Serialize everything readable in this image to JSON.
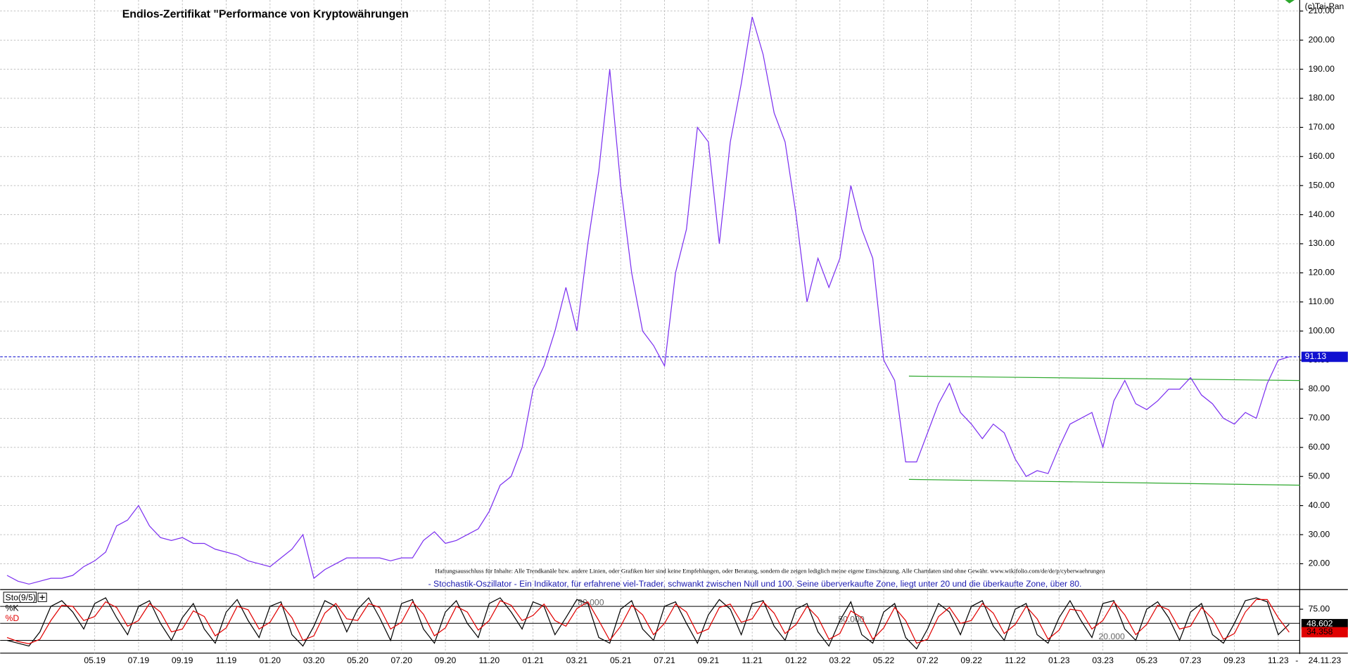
{
  "chart_data": [
    {
      "type": "line",
      "title": "Endlos-Zertifikat \"Performance von Kryptowährungen",
      "copyright": "(c)Tai-Pan",
      "disclaimer": "Haftungsausschluss für Inhalte: Alle Trendkanäle bzw. andere Linien, oder Grafiken hier sind keine Empfehlungen, oder Beratung, sondern die zeigen lediglich meine eigene Einschätzung. Alle Chartdaten sind ohne Gewähr. www.wikifolio.com/de/de/p/cyberwaehrungen",
      "date": "24.11.23",
      "date_separator": "-",
      "categories": [
        null,
        null,
        null,
        null,
        null,
        null,
        null,
        null,
        "05.19",
        null,
        null,
        null,
        "07.19",
        null,
        null,
        null,
        "09.19",
        null,
        null,
        null,
        "11.19",
        null,
        null,
        null,
        "01.20",
        null,
        null,
        null,
        "03.20",
        null,
        null,
        null,
        "05.20",
        null,
        null,
        null,
        "07.20",
        null,
        null,
        null,
        "09.20",
        null,
        null,
        null,
        "11.20",
        null,
        null,
        null,
        "01.21",
        null,
        null,
        null,
        "03.21",
        null,
        null,
        null,
        "05.21",
        null,
        null,
        null,
        "07.21",
        null,
        null,
        null,
        "09.21",
        null,
        null,
        null,
        "11.21",
        null,
        null,
        null,
        "01.22",
        null,
        null,
        null,
        "03.22",
        null,
        null,
        null,
        "05.22",
        null,
        null,
        null,
        "07.22",
        null,
        null,
        null,
        "09.22",
        null,
        null,
        null,
        "11.22",
        null,
        null,
        null,
        "01.23",
        null,
        null,
        null,
        "03.23",
        null,
        null,
        null,
        "05.23",
        null,
        null,
        null,
        "07.23",
        null,
        null,
        null,
        "09.23",
        null,
        null,
        null,
        "11.23",
        null
      ],
      "series": [
        {
          "color": "#7b2ff0",
          "values": [
            16,
            14,
            13,
            14,
            15,
            15,
            16,
            19,
            21,
            24,
            33,
            35,
            40,
            33,
            29,
            28,
            29,
            27,
            27,
            25,
            24,
            23,
            21,
            20,
            19,
            22,
            25,
            30,
            15,
            18,
            20,
            22,
            22,
            22,
            22,
            21,
            22,
            22,
            28,
            31,
            27,
            28,
            30,
            32,
            38,
            47,
            50,
            60,
            80,
            88,
            100,
            115,
            100,
            130,
            155,
            190,
            150,
            120,
            100,
            95,
            88,
            120,
            135,
            170,
            165,
            130,
            165,
            185,
            208,
            195,
            175,
            165,
            140,
            110,
            125,
            115,
            125,
            150,
            135,
            125,
            90,
            83,
            55,
            55,
            65,
            75,
            82,
            72,
            68,
            63,
            68,
            65,
            56,
            50,
            52,
            51,
            60,
            68,
            70,
            72,
            60,
            76,
            83,
            75,
            73,
            76,
            80,
            80,
            84,
            78,
            75,
            70,
            68,
            72,
            70,
            82,
            90,
            91.13
          ]
        }
      ],
      "price_line": 91.13,
      "trendlines": [
        {
          "color": "#2ea82e",
          "x": [
            82.3,
            118
          ],
          "y": [
            84.5,
            83
          ]
        },
        {
          "color": "#2ea82e",
          "x": [
            82.3,
            118
          ],
          "y": [
            49,
            47
          ]
        }
      ],
      "ylim": [
        11.4,
        213.8
      ],
      "yticks": [
        {
          "value": 20,
          "label": "20.00"
        },
        {
          "value": 30,
          "label": "30.00"
        },
        {
          "value": 40,
          "label": "40.00"
        },
        {
          "value": 50,
          "label": "50.00"
        },
        {
          "value": 60,
          "label": "60.00"
        },
        {
          "value": 70,
          "label": "70.00"
        },
        {
          "value": 80,
          "label": "80.00"
        },
        {
          "value": 90,
          "label": "90.00"
        },
        {
          "value": 100,
          "label": "100.00"
        },
        {
          "value": 110,
          "label": "110.00"
        },
        {
          "value": 120,
          "label": "120.00"
        },
        {
          "value": 130,
          "label": "130.00"
        },
        {
          "value": 140,
          "label": "140.00"
        },
        {
          "value": 150,
          "label": "150.00"
        },
        {
          "value": 160,
          "label": "160.00"
        },
        {
          "value": 170,
          "label": "170.00"
        },
        {
          "value": 180,
          "label": "180.00"
        },
        {
          "value": 190,
          "label": "190.00"
        },
        {
          "value": 200,
          "label": "200.00"
        },
        {
          "value": 210,
          "label": "210.00"
        }
      ],
      "grid": true
    },
    {
      "type": "line",
      "title": "- Stochastik-Oszillator - Ein Indikator, für erfahrene viel-Trader, schwankt zwischen Null und 100. Seine überverkaufte Zone, liegt unter 20 und die überkaufte Zone, über 80.",
      "indicator": "Sto(9/5)",
      "series": [
        {
          "name": "%K",
          "color": "#000000",
          "values": [
            20,
            15,
            10,
            35,
            80,
            90,
            70,
            40,
            85,
            95,
            60,
            30,
            80,
            90,
            50,
            20,
            60,
            85,
            40,
            15,
            70,
            92,
            55,
            25,
            80,
            88,
            30,
            10,
            45,
            90,
            80,
            35,
            75,
            95,
            60,
            20,
            85,
            92,
            40,
            15,
            70,
            90,
            50,
            25,
            85,
            95,
            70,
            40,
            88,
            80,
            30,
            60,
            92,
            85,
            25,
            15,
            75,
            90,
            40,
            20,
            80,
            88,
            50,
            15,
            65,
            92,
            75,
            30,
            85,
            90,
            45,
            20,
            75,
            85,
            35,
            10,
            55,
            88,
            30,
            15,
            70,
            85,
            25,
            5,
            40,
            85,
            70,
            30,
            80,
            90,
            45,
            20,
            75,
            85,
            30,
            15,
            60,
            90,
            55,
            25,
            85,
            90,
            40,
            20,
            75,
            88,
            60,
            20,
            70,
            85,
            30,
            15,
            50,
            90,
            95,
            88,
            30,
            48.602
          ]
        },
        {
          "name": "%D",
          "color": "#e00000",
          "values": [
            25,
            18,
            14,
            22,
            55,
            82,
            80,
            55,
            62,
            88,
            78,
            45,
            55,
            85,
            70,
            35,
            40,
            72,
            62,
            28,
            42,
            80,
            74,
            40,
            52,
            84,
            60,
            20,
            28,
            68,
            85,
            58,
            55,
            85,
            78,
            40,
            52,
            88,
            66,
            28,
            42,
            80,
            70,
            38,
            55,
            90,
            82,
            55,
            64,
            84,
            55,
            45,
            76,
            88,
            55,
            20,
            45,
            82,
            65,
            30,
            50,
            84,
            70,
            32,
            40,
            78,
            84,
            52,
            58,
            88,
            68,
            32,
            48,
            80,
            60,
            22,
            32,
            72,
            60,
            22,
            42,
            78,
            55,
            15,
            22,
            62,
            78,
            50,
            55,
            85,
            68,
            32,
            48,
            80,
            58,
            22,
            38,
            75,
            72,
            40,
            55,
            88,
            65,
            30,
            48,
            82,
            74,
            40,
            45,
            78,
            58,
            22,
            32,
            70,
            92,
            92,
            60,
            34.358
          ]
        }
      ],
      "levels": [
        {
          "value": 80,
          "label": "80.000"
        },
        {
          "value": 50,
          "label": "50.000"
        },
        {
          "value": 20,
          "label": "20.000"
        }
      ],
      "ylim": [
        -1,
        108
      ],
      "yticks": [
        {
          "value": 75,
          "label": "75.00"
        }
      ]
    }
  ]
}
